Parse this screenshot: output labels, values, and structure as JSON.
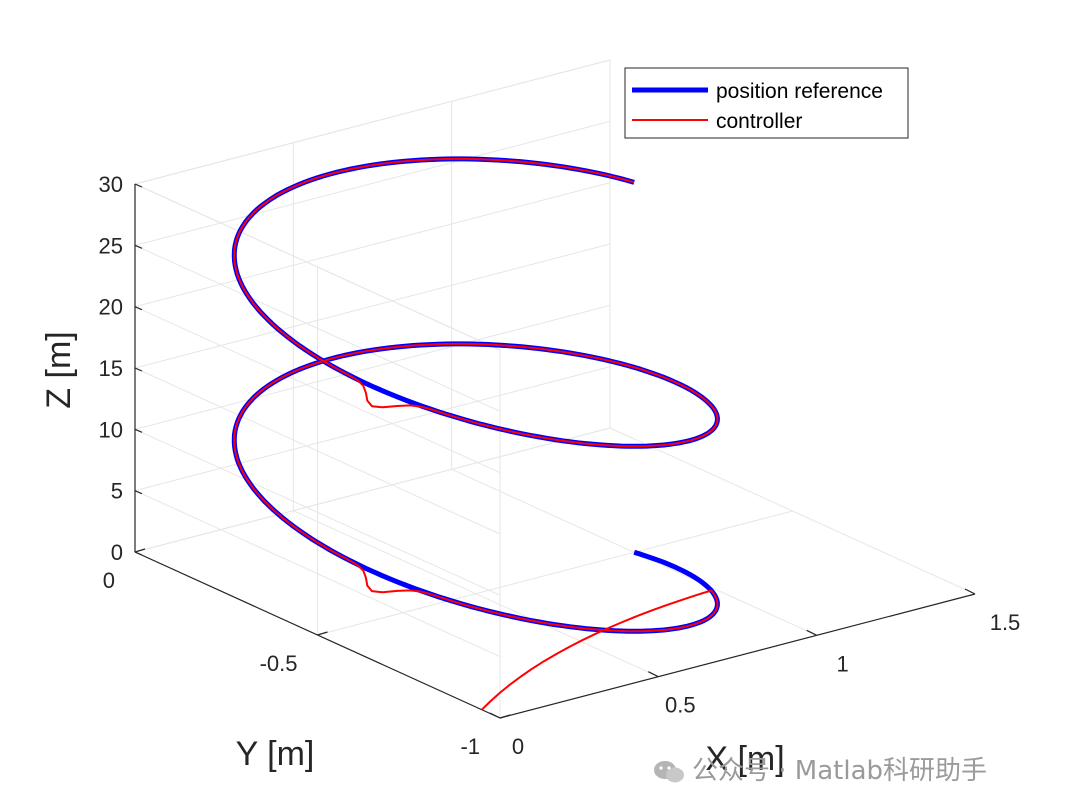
{
  "chart_data": {
    "type": "line3d",
    "title": "",
    "xlabel": "X [m]",
    "ylabel": "Y [m]",
    "zlabel": "Z [m]",
    "xlim": [
      0,
      1.5
    ],
    "ylim": [
      -1,
      0
    ],
    "zlim": [
      0,
      30
    ],
    "xticks": [
      0,
      0.5,
      1,
      1.5
    ],
    "xtick_labels": [
      "0",
      "0.5",
      "1",
      "1.5"
    ],
    "yticks": [
      -1,
      -0.5,
      0
    ],
    "ytick_labels": [
      "-1",
      "-0.5",
      "0"
    ],
    "zticks": [
      0,
      5,
      10,
      15,
      20,
      25,
      30
    ],
    "ztick_labels": [
      "0",
      "5",
      "10",
      "15",
      "20",
      "25",
      "30"
    ],
    "grid": true,
    "legend": {
      "location": "top-right",
      "entries": [
        "position reference",
        "controller"
      ]
    },
    "series": [
      {
        "name": "position reference",
        "color": "#0000ff",
        "description": "helix x = 0.5 + 0.5*cos(t), y = -0.5 - 0.5*sin(t), z = 2.4*t, t from 0 to 4*pi",
        "t_range": [
          0,
          12.566
        ],
        "x_center": 0.5,
        "y_center": -0.5,
        "radius": 0.5,
        "z_per_rad": 2.4,
        "x_samples": [
          1.0,
          0.5,
          0.0,
          0.5,
          1.0,
          0.5,
          0.0,
          0.5,
          1.0
        ],
        "y_samples": [
          -0.5,
          -1.0,
          -0.5,
          0.0,
          -0.5,
          -1.0,
          -0.5,
          0.0,
          -0.5
        ],
        "z_samples": [
          0.0,
          3.8,
          7.5,
          11.3,
          15.1,
          18.8,
          22.6,
          26.4,
          30.2
        ]
      },
      {
        "name": "controller",
        "color": "#ff0000",
        "description": "tracks the reference with a start offset near (0,-1,0) and small overshoots near x=0 turns",
        "start_point": {
          "x": 0.0,
          "y": -0.95,
          "z": 0.0
        }
      }
    ],
    "view": "3D isometric"
  },
  "watermark": {
    "text": "公众号 · Matlab科研助手"
  }
}
